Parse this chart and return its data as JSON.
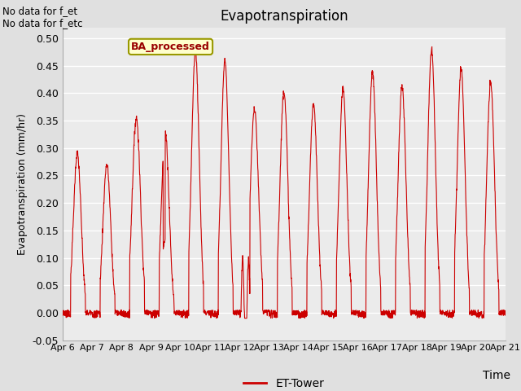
{
  "title": "Evapotranspiration",
  "ylabel": "Evapotranspiration (mm/hr)",
  "xlabel": "Time",
  "text_upper_left": "No data for f_et\nNo data for f_etc",
  "legend_label": "ET-Tower",
  "legend_box_label": "BA_processed",
  "ylim": [
    -0.05,
    0.52
  ],
  "background_color": "#e0e0e0",
  "plot_bg_color": "#ebebeb",
  "line_color": "#cc0000",
  "legend_line_color": "#cc0000",
  "tick_labels": [
    "Apr 6",
    "Apr 7",
    "Apr 8",
    "Apr 9",
    "Apr 10",
    "Apr 11",
    "Apr 12",
    "Apr 13",
    "Apr 14",
    "Apr 15",
    "Apr 16",
    "Apr 17",
    "Apr 18",
    "Apr 19",
    "Apr 20",
    "Apr 21"
  ],
  "ytick_vals": [
    -0.05,
    0.0,
    0.05,
    0.1,
    0.15,
    0.2,
    0.25,
    0.3,
    0.35,
    0.4,
    0.45,
    0.5
  ],
  "ytick_labels": [
    "-0.05",
    "0.00",
    "0.05",
    "0.10",
    "0.15",
    "0.20",
    "0.25",
    "0.30",
    "0.35",
    "0.40",
    "0.45",
    "0.50"
  ],
  "n_days": 15,
  "n_pts_per_day": 144
}
